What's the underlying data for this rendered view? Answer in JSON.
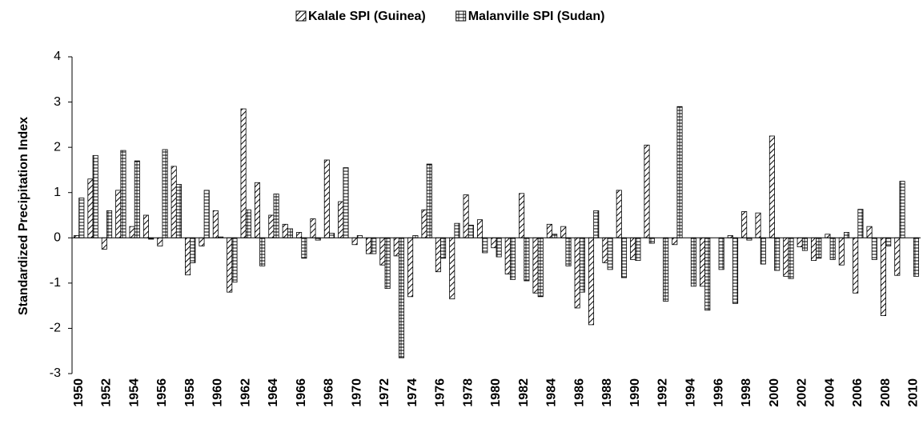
{
  "chart_data": {
    "type": "bar",
    "y_label": "Standardized Precipitation Index",
    "categories": [
      "1950",
      null,
      "1952",
      null,
      "1954",
      null,
      "1956",
      null,
      "1958",
      null,
      "1960",
      null,
      "1962",
      null,
      "1964",
      null,
      "1966",
      null,
      "1968",
      null,
      "1970",
      null,
      "1972",
      null,
      "1974",
      null,
      "1976",
      null,
      "1978",
      null,
      "1980",
      null,
      "1982",
      null,
      "1984",
      null,
      "1986",
      null,
      "1988",
      null,
      "1990",
      null,
      "1992",
      null,
      "1994",
      null,
      "1996",
      null,
      "1998",
      null,
      "2000",
      null,
      "2002",
      null,
      "2004",
      null,
      "2006",
      null,
      "2008",
      null,
      "2010"
    ],
    "series": [
      {
        "name": "Kalale SPI (Guinea)",
        "color": "#000000",
        "pattern": "diagonal",
        "values": [
          0.05,
          1.3,
          -0.25,
          1.05,
          0.25,
          0.5,
          -0.18,
          1.58,
          -0.82,
          -0.18,
          0.6,
          -1.2,
          2.85,
          1.22,
          0.5,
          0.3,
          0.12,
          0.42,
          1.72,
          0.8,
          -0.15,
          -0.35,
          -0.6,
          -0.4,
          -1.3,
          0.62,
          -0.75,
          -1.35,
          0.95,
          0.4,
          -0.22,
          -0.8,
          0.98,
          -1.22,
          0.3,
          0.25,
          -1.55,
          -1.92,
          -0.55,
          1.05,
          -0.48,
          2.05,
          0.0,
          -0.15,
          0.0,
          -1.07,
          0.0,
          0.05,
          0.58,
          0.55,
          2.25,
          -0.85,
          -0.2,
          -0.5,
          0.08,
          -0.6,
          -1.22,
          0.25,
          -1.72,
          -0.83,
          0.0
        ]
      },
      {
        "name": "Malanville SPI (Sudan)",
        "color": "#000000",
        "pattern": "grid",
        "values": [
          0.88,
          1.82,
          0.6,
          1.93,
          1.7,
          -0.03,
          1.95,
          1.18,
          -0.55,
          1.05,
          0.02,
          -0.98,
          0.62,
          -0.62,
          0.97,
          0.2,
          -0.45,
          -0.05,
          0.1,
          1.55,
          0.05,
          -0.35,
          -1.12,
          -2.65,
          0.05,
          1.63,
          -0.45,
          0.32,
          0.28,
          -0.33,
          -0.42,
          -0.92,
          -0.95,
          -1.3,
          0.08,
          -0.62,
          -1.2,
          0.6,
          -0.7,
          -0.88,
          -0.5,
          -0.12,
          -1.4,
          2.9,
          -1.07,
          -1.6,
          -0.7,
          -1.45,
          -0.05,
          -0.58,
          -0.72,
          -0.9,
          -0.28,
          -0.45,
          -0.48,
          0.12,
          0.63,
          -0.48,
          -0.18,
          1.25,
          -0.85
        ]
      }
    ],
    "ylim": [
      -3,
      4
    ],
    "yticks": [
      -3,
      -2,
      -1,
      0,
      1,
      2,
      3,
      4
    ],
    "grid": false,
    "legend": "top"
  }
}
